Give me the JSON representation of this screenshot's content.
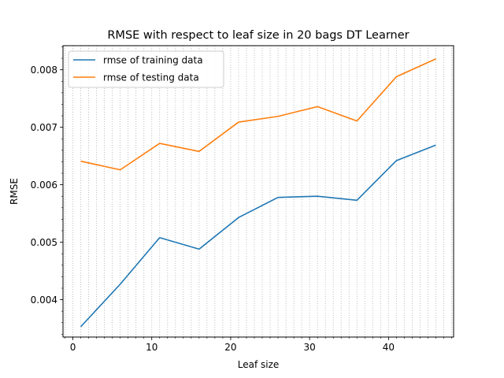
{
  "chart_data": {
    "type": "line",
    "title": "RMSE with respect to leaf size in 20 bags DT Learner",
    "xlabel": "Leaf size",
    "ylabel": "RMSE",
    "xlim": [
      -1.25,
      48.25
    ],
    "ylim": [
      0.00335,
      0.00842
    ],
    "x": [
      1,
      6,
      11,
      16,
      21,
      26,
      31,
      36,
      41,
      46
    ],
    "series": [
      {
        "name": "rmse of training data",
        "color": "#1f77b4",
        "values": [
          0.00353,
          0.00427,
          0.00508,
          0.00488,
          0.00543,
          0.00578,
          0.0058,
          0.00573,
          0.00642,
          0.00669
        ]
      },
      {
        "name": "rmse of testing data",
        "color": "#ff7f0e",
        "values": [
          0.00641,
          0.00626,
          0.00672,
          0.00658,
          0.00709,
          0.00719,
          0.00736,
          0.00711,
          0.00788,
          0.00819
        ]
      }
    ],
    "x_ticks": [
      0,
      10,
      20,
      30,
      40
    ],
    "x_tick_labels": [
      "0",
      "10",
      "20",
      "30",
      "40"
    ],
    "y_ticks": [
      0.004,
      0.005,
      0.006,
      0.007,
      0.008
    ],
    "y_tick_labels": [
      "0.004",
      "0.005",
      "0.006",
      "0.007",
      "0.008"
    ],
    "x_minor_tick_step": 1,
    "y_minor_tick_step": 0.0002,
    "grid": "vertical minor dotted",
    "legend_position": "top-left"
  }
}
